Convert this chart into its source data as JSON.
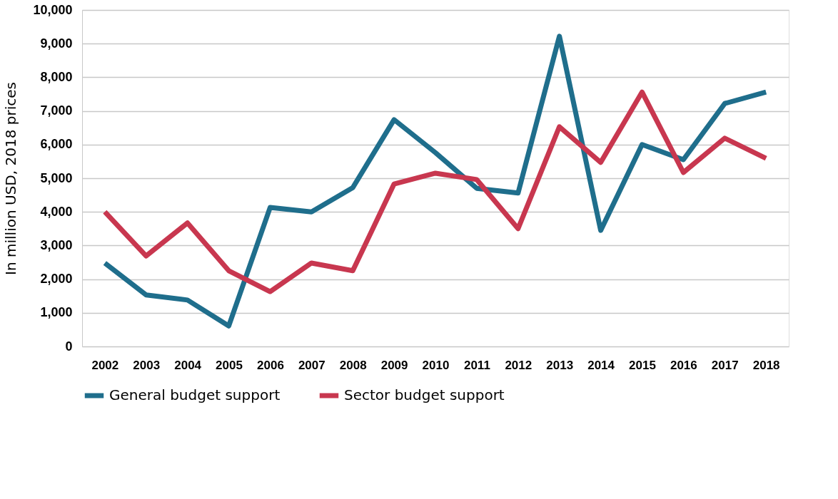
{
  "chart_data": {
    "type": "line",
    "ylabel": "In million USD, 2018 prices",
    "categories": [
      "2002",
      "2003",
      "2004",
      "2005",
      "2006",
      "2007",
      "2008",
      "2009",
      "2010",
      "2011",
      "2012",
      "2013",
      "2014",
      "2015",
      "2016",
      "2017",
      "2018"
    ],
    "series": [
      {
        "name": "General budget support",
        "color": "#1f6e8c",
        "values": [
          2480,
          1530,
          1380,
          610,
          4130,
          4000,
          4720,
          6740,
          5760,
          4700,
          4560,
          9220,
          3450,
          6000,
          5550,
          7220,
          7560
        ]
      },
      {
        "name": "Sector budget support",
        "color": "#c8374f",
        "values": [
          4000,
          2690,
          3670,
          2250,
          1630,
          2480,
          2250,
          4830,
          5150,
          4960,
          3500,
          6530,
          5470,
          7560,
          5170,
          6190,
          5590
        ]
      }
    ],
    "ylim": [
      0,
      10000
    ],
    "yticks": [
      0,
      {
        "value": 1000,
        "label": "1,000"
      },
      {
        "value": 2000,
        "label": "2,000"
      },
      {
        "value": 3000,
        "label": "3,000"
      },
      {
        "value": 4000,
        "label": "4,000"
      },
      {
        "value": 5000,
        "label": "5,000"
      },
      {
        "value": 6000,
        "label": "6,000"
      },
      {
        "value": 7000,
        "label": "7,000"
      },
      {
        "value": 8000,
        "label": "8,000"
      },
      {
        "value": 9000,
        "label": "9,000"
      },
      {
        "value": 10000,
        "label": "10,000"
      }
    ],
    "grid": "y",
    "legend": "bottom",
    "marker": "none",
    "line_style": "solid"
  }
}
